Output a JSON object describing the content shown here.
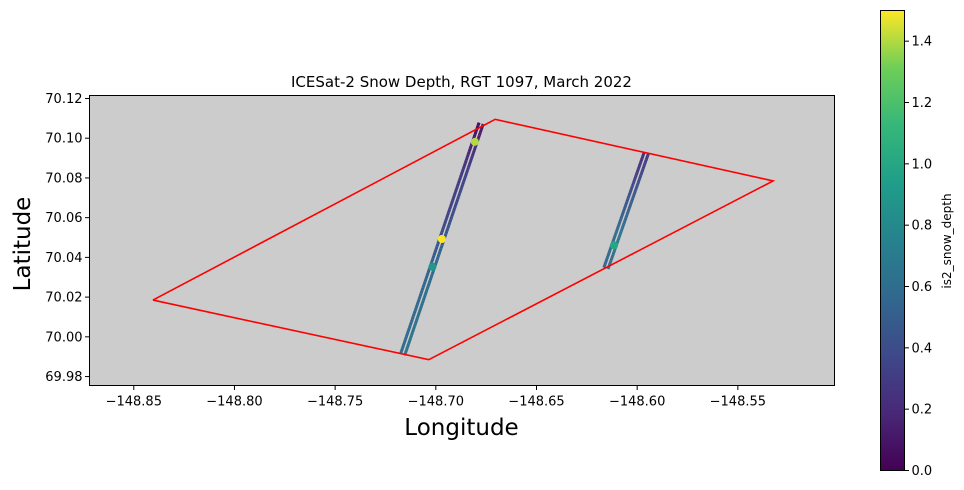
{
  "chart_data": {
    "type": "scatter",
    "title": "ICESat-2 Snow Depth, RGT 1097, March 2022",
    "xlabel": "Longitude",
    "ylabel": "Latitude",
    "xlim": [
      -148.872,
      -148.502
    ],
    "ylim": [
      69.9755,
      70.1215
    ],
    "xticks": [
      -148.85,
      -148.8,
      -148.75,
      -148.7,
      -148.65,
      -148.6,
      -148.55
    ],
    "xtick_labels": [
      "−148.85",
      "−148.80",
      "−148.75",
      "−148.70",
      "−148.65",
      "−148.60",
      "−148.55"
    ],
    "yticks": [
      69.98,
      70.0,
      70.02,
      70.04,
      70.06,
      70.08,
      70.1,
      70.12
    ],
    "ytick_labels": [
      "69.98",
      "70.00",
      "70.02",
      "70.04",
      "70.06",
      "70.08",
      "70.10",
      "70.12"
    ],
    "axes_facecolor": "#cccccc",
    "grid": false,
    "polygon": {
      "color": "#ff0000",
      "vertices": [
        [
          -148.8405,
          70.0185
        ],
        [
          -148.6705,
          70.1095
        ],
        [
          -148.5325,
          70.0785
        ],
        [
          -148.7035,
          69.9885
        ],
        [
          -148.8405,
          70.0185
        ]
      ]
    },
    "tracks": [
      {
        "start": [
          -148.7165,
          69.991
        ],
        "end": [
          -148.6775,
          70.1075
        ],
        "snow_depth_profile": [
          [
            0.0,
            0.62
          ],
          [
            0.3,
            0.58
          ],
          [
            0.45,
            0.5
          ],
          [
            0.55,
            0.4
          ],
          [
            0.65,
            0.35
          ],
          [
            0.8,
            0.3
          ],
          [
            0.92,
            0.15
          ],
          [
            1.0,
            0.08
          ]
        ],
        "highlights": [
          {
            "t": 0.5,
            "value": 1.5
          },
          {
            "t": 0.92,
            "value": 1.4
          },
          {
            "t": 0.38,
            "value": 0.9
          }
        ]
      },
      {
        "start": [
          -148.6155,
          70.0345
        ],
        "end": [
          -148.5955,
          70.0925
        ],
        "snow_depth_profile": [
          [
            0.0,
            0.55
          ],
          [
            0.3,
            0.62
          ],
          [
            0.5,
            0.5
          ],
          [
            0.7,
            0.4
          ],
          [
            0.85,
            0.3
          ],
          [
            1.0,
            0.22
          ]
        ],
        "highlights": [
          {
            "t": 0.2,
            "value": 1.0
          }
        ]
      }
    ],
    "colorbar": {
      "label": "is2_snow_depth",
      "colormap": "viridis",
      "vmin": 0.0,
      "vmax": 1.5,
      "ticks": [
        0.0,
        0.2,
        0.4,
        0.6,
        0.8,
        1.0,
        1.2,
        1.4
      ],
      "tick_labels": [
        "0.0",
        "0.2",
        "0.4",
        "0.6",
        "0.8",
        "1.0",
        "1.2",
        "1.4"
      ]
    }
  }
}
